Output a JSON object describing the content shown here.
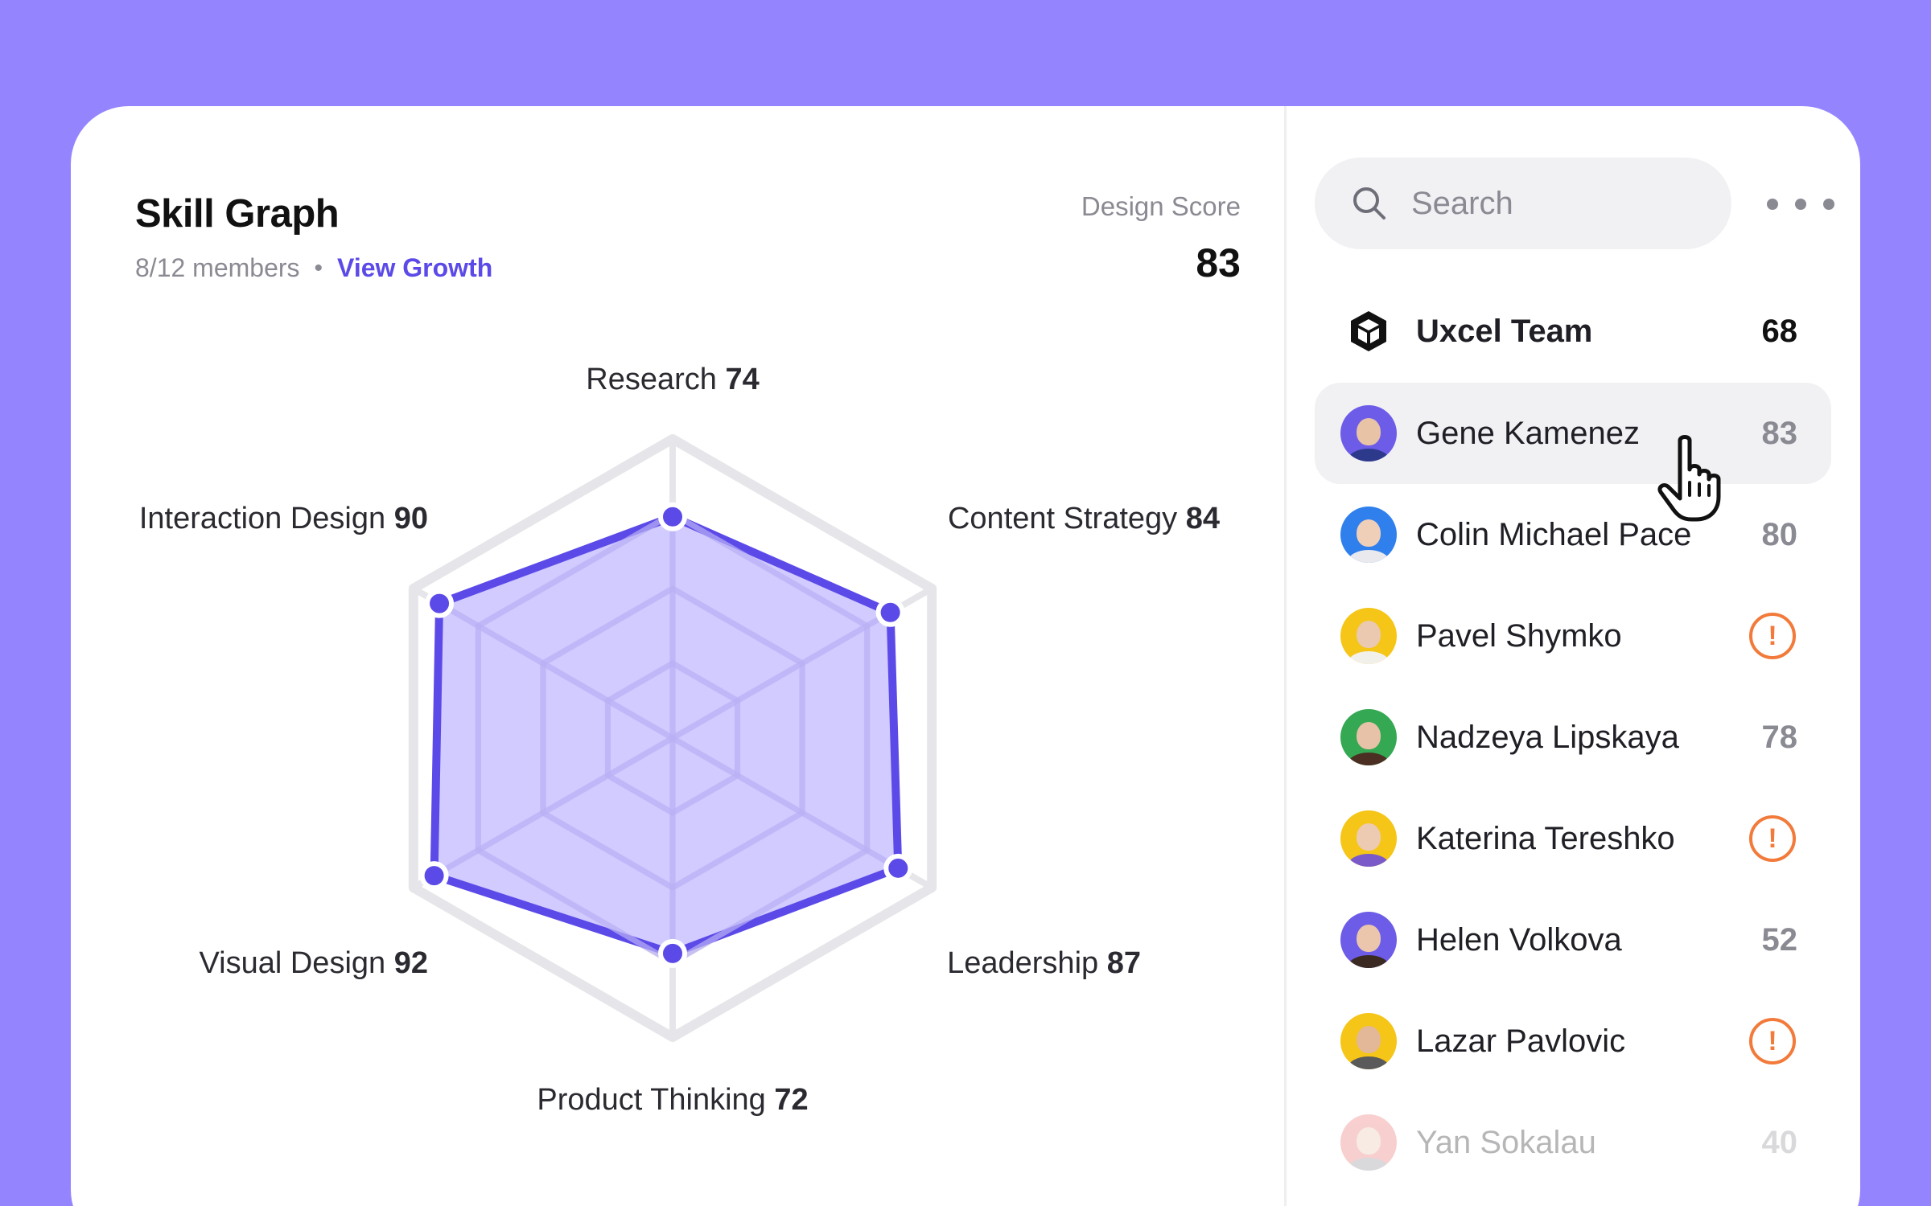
{
  "skill_graph": {
    "title": "Skill Graph",
    "members_text": "8/12 members",
    "separator": "•",
    "view_growth_label": "View Growth",
    "design_score_label": "Design Score",
    "design_score_value": "83"
  },
  "chart_data": {
    "type": "radar",
    "axes": [
      "Research",
      "Content Strategy",
      "Leadership",
      "Product Thinking",
      "Visual Design",
      "Interaction Design"
    ],
    "values": [
      74,
      84,
      87,
      72,
      92,
      90
    ],
    "range": [
      0,
      100
    ],
    "grid_levels": 4,
    "series_color": "#5B4AE8",
    "fill_color": "#C9C2FF"
  },
  "search": {
    "placeholder": "Search",
    "icon": "search-icon"
  },
  "more_menu": {
    "icon": "more-horizontal-icon"
  },
  "team": {
    "name": "Uxcel Team",
    "score": "68",
    "icon": "uxcel-logo-icon"
  },
  "members": [
    {
      "name": "Gene Kamenez",
      "score": "83",
      "warning": false,
      "avatar_bg": "#6C5CE7",
      "skin": "#E9C3A6",
      "shirt": "#2D3A8C"
    },
    {
      "name": "Colin Michael Pace",
      "score": "80",
      "warning": false,
      "avatar_bg": "#2F80ED",
      "skin": "#F0CFB8",
      "shirt": "#E9E9EE"
    },
    {
      "name": "Pavel Shymko",
      "score": "",
      "warning": true,
      "avatar_bg": "#F5C518",
      "skin": "#EAC9B0",
      "shirt": "#F2F0EA"
    },
    {
      "name": "Nadzeya Lipskaya",
      "score": "78",
      "warning": false,
      "avatar_bg": "#34A853",
      "skin": "#E8C2A8",
      "shirt": "#4A2F22"
    },
    {
      "name": "Katerina Tereshko",
      "score": "",
      "warning": true,
      "avatar_bg": "#F5C518",
      "skin": "#EDCBB2",
      "shirt": "#7A5AC9"
    },
    {
      "name": "Helen Volkova",
      "score": "52",
      "warning": false,
      "avatar_bg": "#6C5CE7",
      "skin": "#EBC6AC",
      "shirt": "#3A2A22"
    },
    {
      "name": "Lazar Pavlovic",
      "score": "",
      "warning": true,
      "avatar_bg": "#F5C518",
      "skin": "#E2B899",
      "shirt": "#5A5A5A"
    },
    {
      "name": "Yan Sokalau",
      "score": "40",
      "warning": false,
      "avatar_bg": "#EB6B6B",
      "skin": "#E8C4AC",
      "shirt": "#8A8A93"
    }
  ],
  "warning_symbol": "!",
  "colors": {
    "background": "#9485FF",
    "accent": "#5B4AE8",
    "warning": "#F27A3A"
  }
}
